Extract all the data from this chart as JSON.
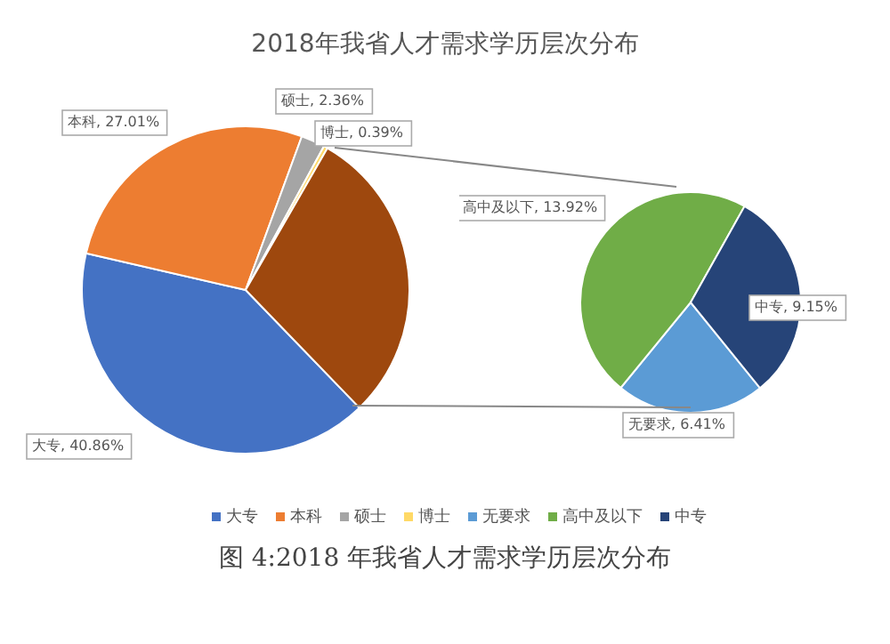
{
  "chart_data": [
    {
      "type": "pie",
      "title": "2018年我省人才需求学历层次分布",
      "categories": [
        "大专",
        "本科",
        "硕士",
        "博士",
        null
      ],
      "values": [
        40.86,
        27.01,
        2.36,
        0.39,
        29.48
      ],
      "colors": [
        "#4472c4",
        "#ed7d31",
        "#a5a5a5",
        "#ffd966",
        "#9e480e"
      ],
      "value_labels": [
        "大专, 40.86%",
        "本科, 27.01%",
        "硕士, 2.36%",
        "博士, 0.39%",
        null
      ],
      "legend": "bottom"
    },
    {
      "type": "pie",
      "categories": [
        "无要求",
        "高中及以下",
        "中专"
      ],
      "values": [
        6.41,
        13.92,
        9.15
      ],
      "colors": [
        "#5b9bd5",
        "#70ad47",
        "#264478"
      ],
      "value_labels": [
        "无要求, 6.41%",
        "高中及以下, 13.92%",
        "中专, 9.15%"
      ],
      "legend": "bottom",
      "annotations": [
        "图 4:2018 年我省人才需求学历层次分布"
      ]
    }
  ]
}
